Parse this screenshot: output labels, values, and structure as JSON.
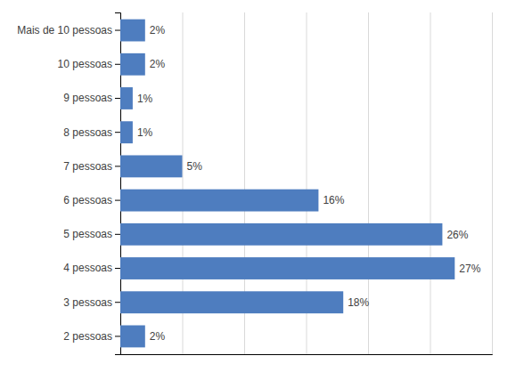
{
  "chart_data": {
    "type": "bar",
    "orientation": "horizontal",
    "categories": [
      "2 pessoas",
      "3 pessoas",
      "4 pessoas",
      "5 pessoas",
      "6 pessoas",
      "7 pessoas",
      "8 pessoas",
      "9 pessoas",
      "10 pessoas",
      "Mais de 10 pessoas"
    ],
    "values": [
      2,
      18,
      27,
      26,
      16,
      5,
      1,
      1,
      2,
      2
    ],
    "value_labels": [
      "2%",
      "18%",
      "27%",
      "26%",
      "16%",
      "5%",
      "1%",
      "1%",
      "2%",
      "2%"
    ],
    "data_labels": true,
    "color": "#4e7dbf",
    "xlim": [
      0,
      30
    ],
    "xticks": [
      0,
      5,
      10,
      15,
      20,
      25,
      30
    ],
    "grid": true,
    "tick_labels": "y"
  }
}
